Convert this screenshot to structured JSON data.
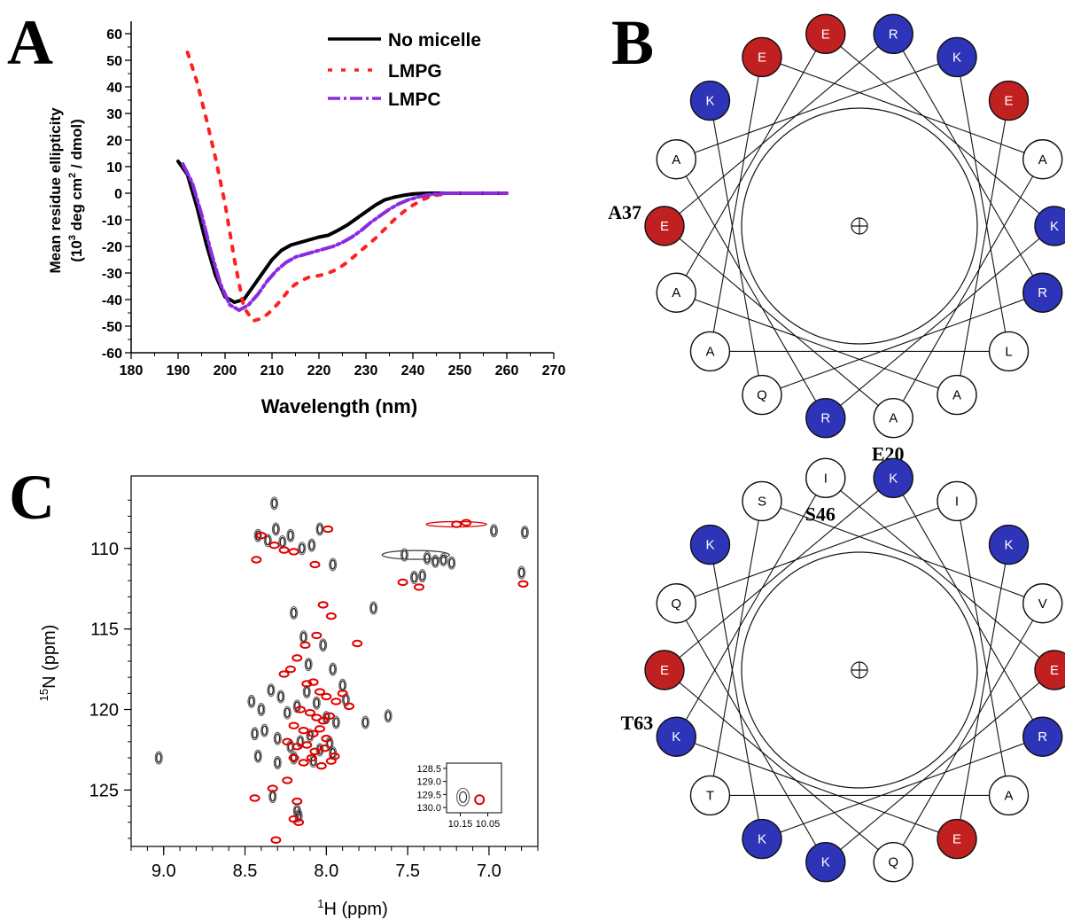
{
  "panel_labels": {
    "a": "A",
    "b": "B",
    "c": "C"
  },
  "colors": {
    "acidic": "#c0201f",
    "basic": "#2e34b8",
    "neutral": "#ffffff",
    "no_micelle": "#000000",
    "lmpg": "#ff2020",
    "lmpc": "#8a2be2",
    "nmr_gray": "#555555",
    "nmr_red": "#e00000"
  },
  "chart_data": [
    {
      "panel": "A",
      "type": "line",
      "title": "",
      "xlabel": "Wavelength (nm)",
      "ylabel_line1": "Mean residue ellipticity",
      "ylabel_line2_prefix": "(10",
      "ylabel_line2_exp": "3",
      "ylabel_line2_mid": " deg cm",
      "ylabel_line2_exp2": "2",
      "ylabel_line2_suffix": " / dmol)",
      "xlim": [
        180,
        270
      ],
      "ylim": [
        -60,
        60
      ],
      "xticks": [
        180,
        190,
        200,
        210,
        220,
        230,
        240,
        250,
        260,
        270
      ],
      "yticks": [
        60,
        50,
        40,
        30,
        20,
        10,
        0,
        -10,
        -20,
        -30,
        -40,
        -50,
        -60
      ],
      "legend_position": "top-right",
      "series": [
        {
          "name": "No micelle",
          "style": "solid",
          "x": [
            190,
            192,
            194,
            196,
            198,
            200,
            202,
            204,
            206,
            208,
            210,
            212,
            214,
            216,
            218,
            220,
            222,
            224,
            226,
            228,
            230,
            232,
            234,
            236,
            238,
            240,
            242,
            244,
            246,
            248,
            250,
            255,
            260
          ],
          "y": [
            12,
            7,
            -5,
            -19,
            -31,
            -39,
            -41,
            -40,
            -35,
            -30,
            -25,
            -21.5,
            -19.5,
            -18.5,
            -17.5,
            -16.5,
            -15.8,
            -14,
            -12,
            -9.5,
            -7,
            -4.5,
            -2.5,
            -1.5,
            -0.8,
            -0.3,
            -0.1,
            0,
            0,
            0,
            0,
            0,
            0
          ]
        },
        {
          "name": "LMPG",
          "style": "dotted",
          "x": [
            192,
            194,
            196,
            198,
            200,
            202,
            204,
            206,
            208,
            210,
            212,
            214,
            216,
            218,
            220,
            222,
            224,
            226,
            228,
            230,
            232,
            234,
            236,
            238,
            240,
            242,
            244,
            246,
            248,
            250,
            255,
            260
          ],
          "y": [
            53,
            42,
            28,
            13,
            -4,
            -25,
            -43,
            -48,
            -47,
            -44,
            -40,
            -35.5,
            -33,
            -31.5,
            -31,
            -30,
            -28.5,
            -26,
            -23,
            -20,
            -17,
            -13.5,
            -10,
            -7,
            -4.5,
            -2.5,
            -1,
            -0.5,
            0,
            0,
            0,
            0
          ]
        },
        {
          "name": "LMPC",
          "style": "dashdot",
          "x": [
            191,
            193,
            195,
            197,
            199,
            201,
            203,
            205,
            207,
            209,
            211,
            213,
            215,
            217,
            219,
            221,
            223,
            225,
            227,
            229,
            231,
            233,
            235,
            237,
            239,
            241,
            243,
            245,
            247,
            249,
            252,
            256,
            260
          ],
          "y": [
            11,
            4,
            -8,
            -22,
            -34,
            -42,
            -44,
            -42,
            -38,
            -33,
            -29,
            -26,
            -24,
            -23,
            -22,
            -21,
            -20,
            -18.5,
            -16.5,
            -14,
            -11,
            -8.5,
            -6,
            -4,
            -2.5,
            -1.5,
            -0.7,
            -0.3,
            0,
            0,
            0,
            0,
            0
          ]
        }
      ]
    },
    {
      "panel": "C",
      "type": "scatter",
      "title": "",
      "xlabel_prefix": "1",
      "xlabel_main": "H  (ppm)",
      "ylabel_prefix": "15",
      "ylabel_main": "N  (ppm)",
      "xlim": [
        9.2,
        6.7
      ],
      "ylim": [
        128.5,
        105.5
      ],
      "xticks": [
        "9.0",
        "8.5",
        "8.0",
        "7.5",
        "7.0"
      ],
      "xtick_values": [
        9.0,
        8.5,
        8.0,
        7.5,
        7.0
      ],
      "yticks": [
        "110",
        "115",
        "120",
        "125"
      ],
      "ytick_values": [
        110,
        115,
        120,
        125
      ],
      "series": [
        {
          "name": "gray",
          "x": [
            8.32,
            8.31,
            8.42,
            8.36,
            8.27,
            8.22,
            8.15,
            8.09,
            8.04,
            7.96,
            7.71,
            7.52,
            7.38,
            7.33,
            7.28,
            7.23,
            6.78,
            6.8,
            6.97,
            8.2,
            8.14,
            8.11,
            8.02,
            7.96,
            7.9,
            7.76,
            7.62,
            8.46,
            8.4,
            8.34,
            8.28,
            8.24,
            8.18,
            8.12,
            8.06,
            8.0,
            7.94,
            7.88,
            8.44,
            8.38,
            8.3,
            8.22,
            8.16,
            8.1,
            8.04,
            7.98,
            8.42,
            8.3,
            8.2,
            8.08,
            7.96,
            9.03,
            8.33,
            8.18,
            8.17,
            7.41,
            7.46
          ],
          "y": [
            107.2,
            108.8,
            109.2,
            109.5,
            109.6,
            109.2,
            110.0,
            109.8,
            108.8,
            111.0,
            113.7,
            110.4,
            110.6,
            110.8,
            110.7,
            110.9,
            109.0,
            111.5,
            108.9,
            114.0,
            115.5,
            117.2,
            116.0,
            117.5,
            118.5,
            120.8,
            120.4,
            119.5,
            120.0,
            118.8,
            119.2,
            120.2,
            119.8,
            118.9,
            119.6,
            120.5,
            120.8,
            119.4,
            121.5,
            121.3,
            121.8,
            122.3,
            122.0,
            121.6,
            122.5,
            122.1,
            122.9,
            123.3,
            123.0,
            123.2,
            122.7,
            123.0,
            125.4,
            126.3,
            126.6,
            111.7,
            111.8
          ]
        },
        {
          "name": "red",
          "x": [
            8.4,
            8.32,
            8.26,
            8.2,
            8.07,
            7.99,
            7.53,
            7.43,
            7.14,
            7.2,
            6.79,
            8.02,
            7.97,
            7.81,
            8.06,
            8.13,
            8.18,
            8.22,
            8.26,
            8.12,
            8.08,
            8.04,
            8.0,
            7.94,
            7.9,
            7.86,
            8.16,
            8.1,
            8.06,
            8.02,
            7.98,
            8.2,
            8.14,
            8.08,
            8.04,
            8.0,
            8.24,
            8.18,
            8.12,
            8.07,
            8.01,
            7.95,
            8.2,
            8.14,
            8.09,
            8.03,
            7.97,
            8.44,
            8.33,
            8.24,
            8.18,
            8.2,
            8.17,
            8.31,
            8.43
          ],
          "y": [
            109.2,
            109.8,
            110.1,
            110.2,
            111.0,
            108.8,
            112.1,
            112.4,
            108.4,
            108.5,
            112.2,
            113.5,
            114.2,
            115.9,
            115.4,
            116.0,
            116.8,
            117.5,
            117.8,
            118.4,
            118.3,
            118.9,
            119.2,
            119.5,
            119.0,
            119.8,
            120.0,
            120.2,
            120.5,
            120.7,
            120.4,
            121.0,
            121.3,
            121.5,
            121.2,
            121.8,
            122.0,
            122.3,
            122.2,
            122.6,
            122.4,
            122.9,
            123.0,
            123.3,
            123.0,
            123.5,
            123.2,
            125.5,
            124.9,
            124.4,
            125.7,
            126.8,
            127.0,
            128.1,
            110.7
          ]
        }
      ],
      "inset": {
        "yticks": [
          "128.5",
          "129.0",
          "129.5",
          "130.0"
        ],
        "xticks": [
          "10.15",
          "10.05"
        ],
        "xlim": [
          10.2,
          10.0
        ],
        "ylim": [
          128.3,
          130.2
        ],
        "gray_peak": [
          10.14,
          129.6
        ],
        "red_peak": [
          10.08,
          129.7
        ]
      }
    }
  ],
  "helical_wheels": [
    {
      "panel": "B-top",
      "annotations": [
        {
          "text": "E20",
          "residue_index": 6
        },
        {
          "text": "A37",
          "residue_index": 11
        }
      ],
      "residues": [
        {
          "letter": "E",
          "type": "acidic"
        },
        {
          "letter": "A",
          "type": "neutral"
        },
        {
          "letter": "K",
          "type": "basic"
        },
        {
          "letter": "R",
          "type": "basic"
        },
        {
          "letter": "L",
          "type": "neutral"
        },
        {
          "letter": "A",
          "type": "neutral"
        },
        {
          "letter": "A",
          "type": "neutral"
        },
        {
          "letter": "R",
          "type": "basic"
        },
        {
          "letter": "Q",
          "type": "neutral"
        },
        {
          "letter": "A",
          "type": "neutral"
        },
        {
          "letter": "A",
          "type": "neutral"
        },
        {
          "letter": "E",
          "type": "acidic"
        },
        {
          "letter": "A",
          "type": "neutral"
        },
        {
          "letter": "K",
          "type": "basic"
        },
        {
          "letter": "E",
          "type": "acidic"
        },
        {
          "letter": "E",
          "type": "acidic"
        },
        {
          "letter": "R",
          "type": "basic"
        },
        {
          "letter": "K",
          "type": "basic"
        }
      ]
    },
    {
      "panel": "B-bottom",
      "annotations": [
        {
          "text": "S46",
          "residue_index": 15
        },
        {
          "text": "T63",
          "residue_index": 10
        }
      ],
      "residues": [
        {
          "letter": "K",
          "type": "basic"
        },
        {
          "letter": "V",
          "type": "neutral"
        },
        {
          "letter": "E",
          "type": "acidic"
        },
        {
          "letter": "R",
          "type": "basic"
        },
        {
          "letter": "A",
          "type": "neutral"
        },
        {
          "letter": "E",
          "type": "acidic"
        },
        {
          "letter": "Q",
          "type": "neutral"
        },
        {
          "letter": "K",
          "type": "basic"
        },
        {
          "letter": "K",
          "type": "basic"
        },
        {
          "letter": "T",
          "type": "neutral"
        },
        {
          "letter": "K",
          "type": "basic"
        },
        {
          "letter": "E",
          "type": "acidic"
        },
        {
          "letter": "Q",
          "type": "neutral"
        },
        {
          "letter": "K",
          "type": "basic"
        },
        {
          "letter": "S",
          "type": "neutral"
        },
        {
          "letter": "I",
          "type": "neutral"
        },
        {
          "letter": "K",
          "type": "basic"
        },
        {
          "letter": "I",
          "type": "neutral"
        }
      ]
    }
  ]
}
